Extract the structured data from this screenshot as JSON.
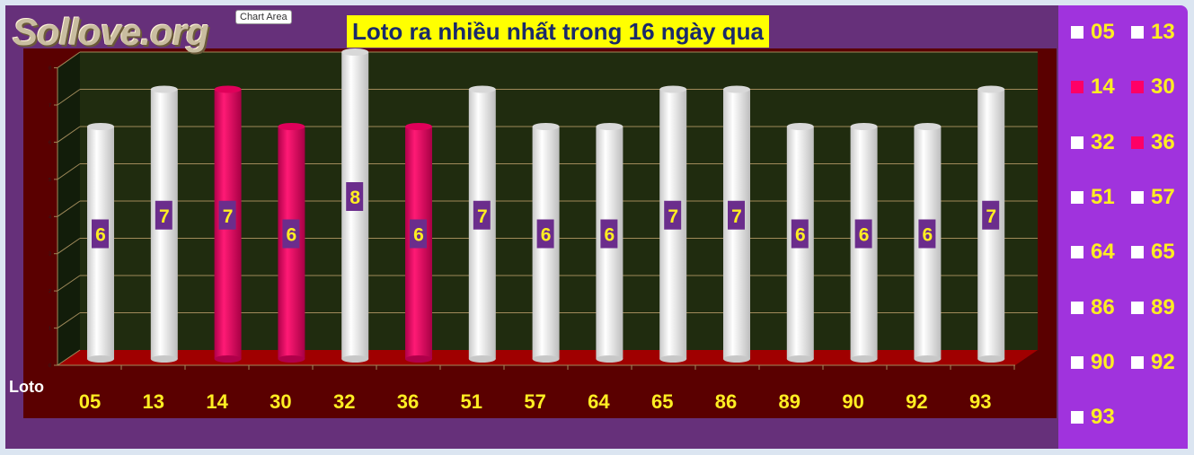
{
  "tooltip": "Chart Area",
  "logo": "Sollove.org",
  "chart_data": {
    "type": "bar",
    "title": "Loto ra nhiều nhất trong 16 ngày qua",
    "xlabel": "Loto",
    "categories": [
      "05",
      "13",
      "14",
      "30",
      "32",
      "36",
      "51",
      "57",
      "64",
      "65",
      "86",
      "89",
      "90",
      "92",
      "93"
    ],
    "values": [
      6,
      7,
      7,
      6,
      8,
      6,
      7,
      6,
      6,
      7,
      7,
      6,
      6,
      6,
      7
    ],
    "highlighted": [
      "14",
      "30",
      "36"
    ],
    "ylim": [
      0,
      8
    ],
    "yticks": [
      0,
      1,
      2,
      3,
      4,
      5,
      6,
      7,
      8
    ],
    "grid": true,
    "legend": "right",
    "colors": {
      "normal": "#ffffff",
      "highlight": "#ff0066",
      "label_bg": "#6b2d8c",
      "label_text": "#ffee22"
    }
  }
}
